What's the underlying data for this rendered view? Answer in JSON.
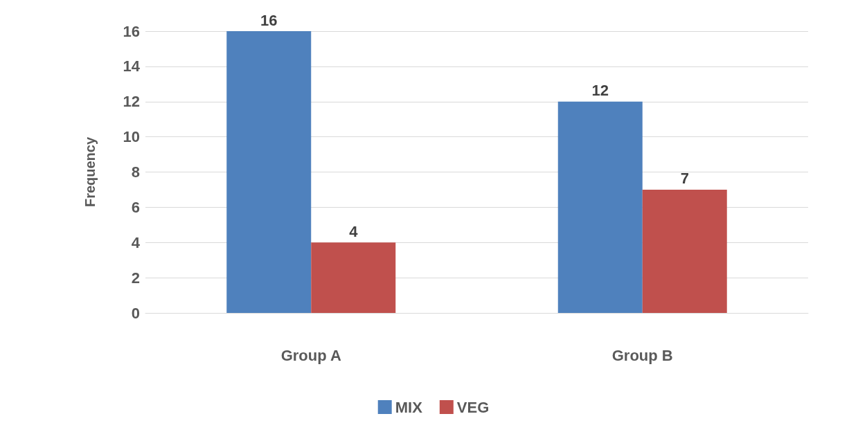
{
  "chart_data": {
    "type": "bar",
    "ylabel": "Frequency",
    "categories": [
      "Group A",
      "Group B"
    ],
    "series": [
      {
        "name": "MIX",
        "color": "#4f81bd",
        "values": [
          16,
          12
        ]
      },
      {
        "name": "VEG",
        "color": "#c0504d",
        "values": [
          4,
          7
        ]
      }
    ],
    "ylim": [
      0,
      16
    ],
    "yticks": [
      0,
      2,
      4,
      6,
      8,
      10,
      12,
      14,
      16
    ],
    "grid": "y",
    "legend": "bottom",
    "data_labels": true
  }
}
